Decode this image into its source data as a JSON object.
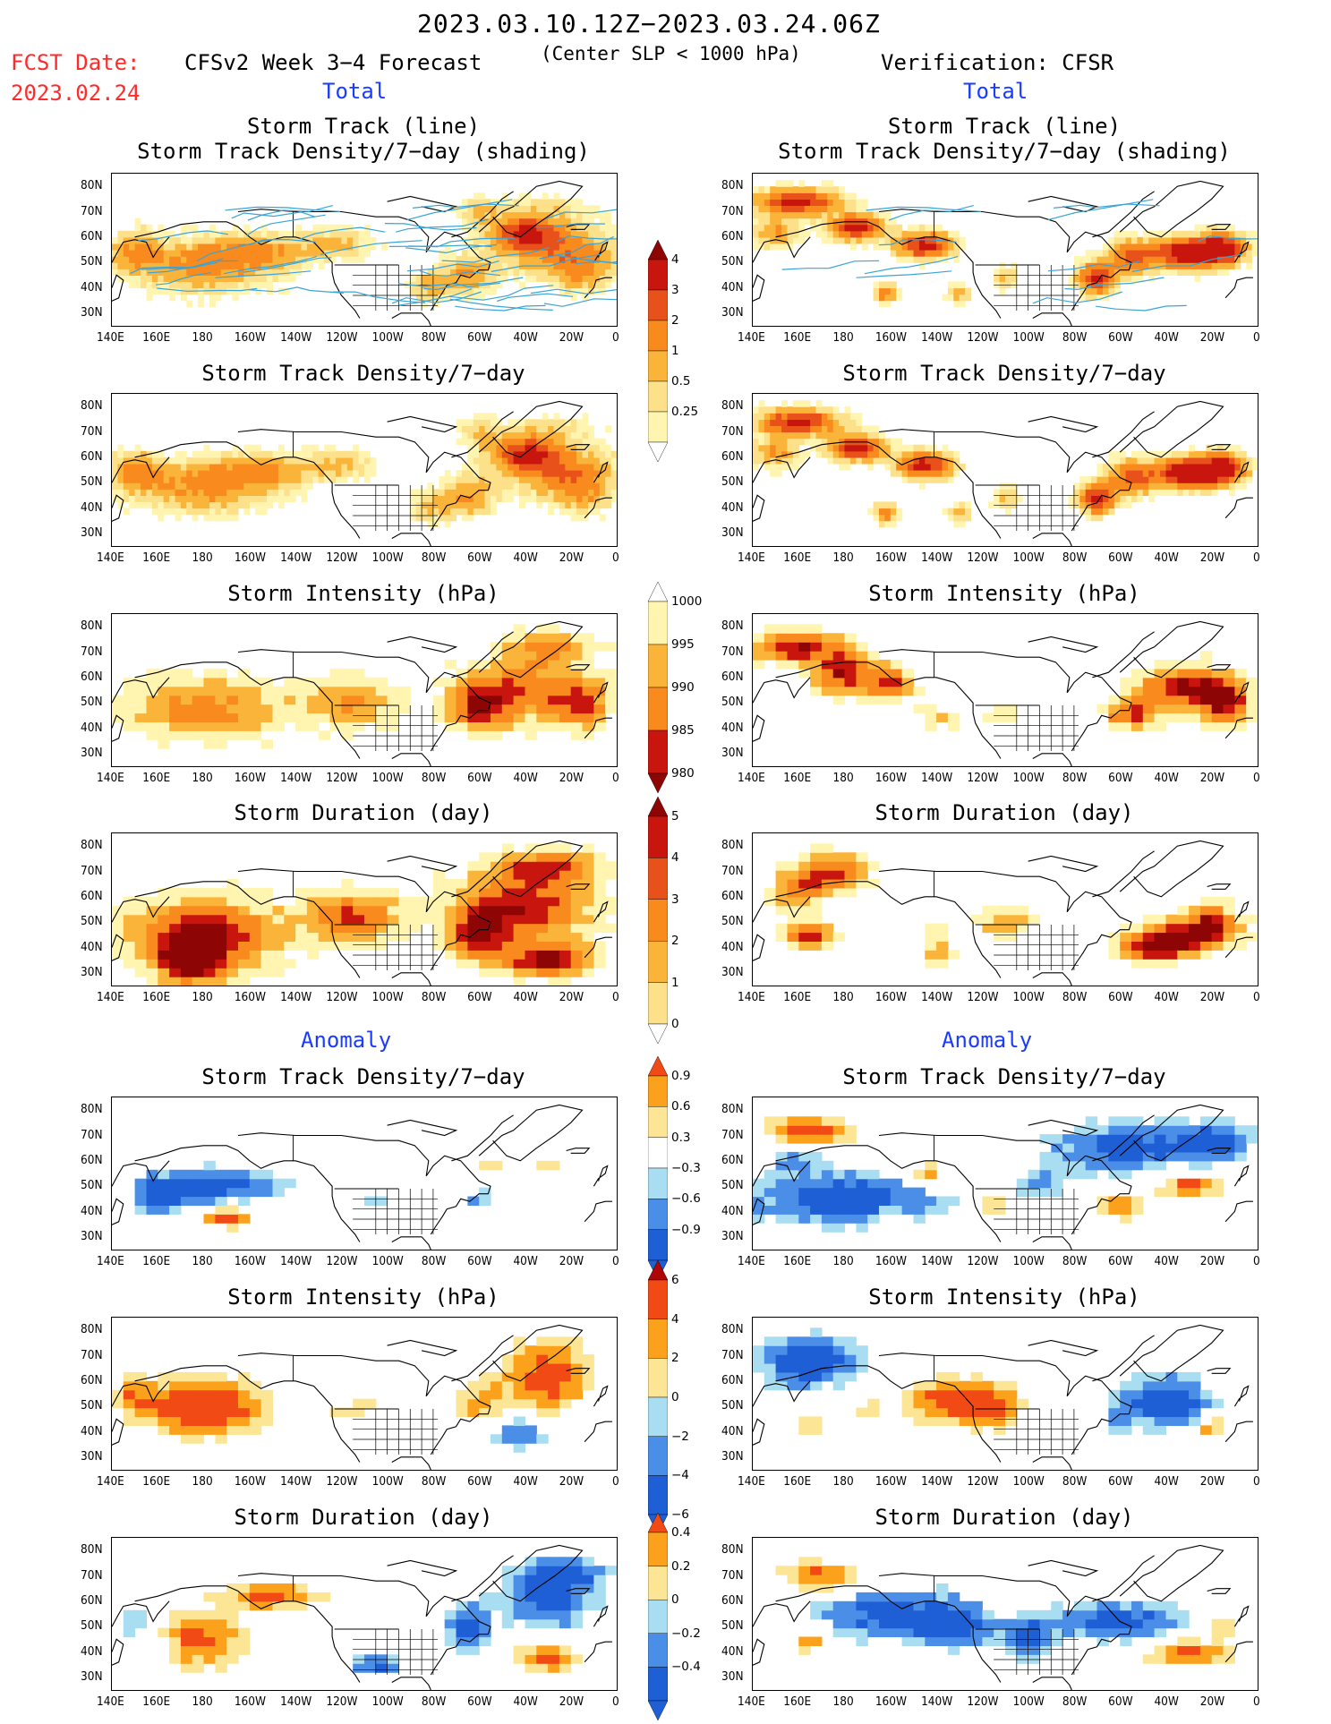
{
  "header": {
    "period": "2023.03.10.12Z−2023.03.24.06Z",
    "fcst_label": "FCST Date:",
    "fcst_date": "2023.02.24",
    "model": "CFSv2 Week 3−4 Forecast",
    "criterion": "(Center SLP < 1000 hPa)",
    "verification": "Verification: CFSR",
    "total_label": "Total",
    "anomaly_label": "Anomaly"
  },
  "panel_titles": {
    "track_line": "Storm Track (line)",
    "track_shading": "Storm Track Density/7−day (shading)",
    "density": "Storm Track Density/7−day",
    "intensity": "Storm Intensity (hPa)",
    "duration": "Storm Duration (day)"
  },
  "axes": {
    "lat_labels": [
      "80N",
      "70N",
      "60N",
      "50N",
      "40N",
      "30N"
    ],
    "lon_labels": [
      "140E",
      "160E",
      "180",
      "160W",
      "140W",
      "120W",
      "100W",
      "80W",
      "60W",
      "40W",
      "20W",
      "0"
    ]
  },
  "colorbars": {
    "density_total": [
      "4",
      "3",
      "2",
      "1",
      "0.5",
      "0.25"
    ],
    "intensity_total": [
      "1000",
      "995",
      "990",
      "985",
      "980"
    ],
    "duration_total": [
      "5",
      "4",
      "3",
      "2",
      "1",
      "0"
    ],
    "density_anom": [
      "0.9",
      "0.6",
      "0.3",
      "−0.3",
      "−0.6",
      "−0.9"
    ],
    "intensity_anom": [
      "6",
      "4",
      "2",
      "0",
      "−2",
      "−4",
      "−6"
    ],
    "duration_anom": [
      "0.4",
      "0.2",
      "0",
      "−0.2",
      "−0.4"
    ]
  },
  "colors": {
    "warm_scale": [
      "#fff5b0",
      "#fde08a",
      "#fbb43a",
      "#f88a1e",
      "#e8521a",
      "#c8160e",
      "#8e0505"
    ],
    "anom_scale": [
      "#1f5fd6",
      "#4b8ee8",
      "#a9def2",
      "#ffffff",
      "#fde596",
      "#fba11c",
      "#f24a14",
      "#ad0707"
    ],
    "track_line": "#3aa4d8"
  }
}
